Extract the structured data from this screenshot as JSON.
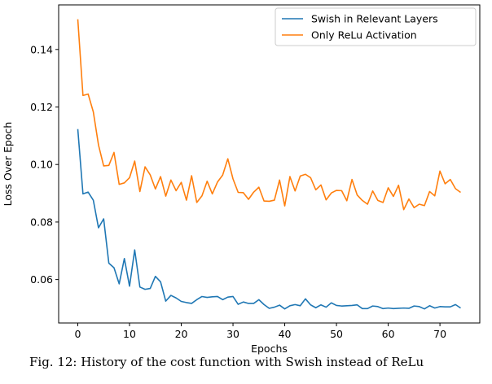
{
  "chart_data": {
    "type": "line",
    "xlabel": "Epochs",
    "ylabel": "Loss Over Epoch",
    "xlim": [
      -3.7,
      77.7
    ],
    "ylim": [
      0.0449,
      0.1555
    ],
    "xticks": [
      0,
      10,
      20,
      30,
      40,
      50,
      60,
      70
    ],
    "yticks": [
      0.06,
      0.08,
      0.1,
      0.12,
      0.14
    ],
    "ytick_labels": [
      "0.06",
      "0.08",
      "0.10",
      "0.12",
      "0.14"
    ],
    "grid": false,
    "legend_position": "top-right",
    "x": [
      0,
      1,
      2,
      3,
      4,
      5,
      6,
      7,
      8,
      9,
      10,
      11,
      12,
      13,
      14,
      15,
      16,
      17,
      18,
      19,
      20,
      21,
      22,
      23,
      24,
      25,
      26,
      27,
      28,
      29,
      30,
      31,
      32,
      33,
      34,
      35,
      36,
      37,
      38,
      39,
      40,
      41,
      42,
      43,
      44,
      45,
      46,
      47,
      48,
      49,
      50,
      51,
      52,
      53,
      54,
      55,
      56,
      57,
      58,
      59,
      60,
      61,
      62,
      63,
      64,
      65,
      66,
      67,
      68,
      69,
      70,
      71,
      72,
      73,
      74
    ],
    "series": [
      {
        "name": "Swish in Relevant Layers",
        "color": "#1f77b4",
        "values": [
          0.1123,
          0.0898,
          0.0904,
          0.0876,
          0.078,
          0.0811,
          0.0657,
          0.0641,
          0.0585,
          0.0673,
          0.0577,
          0.0703,
          0.0574,
          0.0566,
          0.0569,
          0.0611,
          0.0592,
          0.0525,
          0.0545,
          0.0536,
          0.0524,
          0.052,
          0.0517,
          0.053,
          0.0541,
          0.0538,
          0.054,
          0.0541,
          0.053,
          0.0539,
          0.0541,
          0.0514,
          0.0522,
          0.0517,
          0.0517,
          0.053,
          0.0513,
          0.05,
          0.0504,
          0.0511,
          0.0498,
          0.0509,
          0.0513,
          0.0509,
          0.0533,
          0.0512,
          0.0502,
          0.0512,
          0.0504,
          0.0519,
          0.051,
          0.0508,
          0.0509,
          0.051,
          0.0512,
          0.0499,
          0.0499,
          0.0508,
          0.0506,
          0.0499,
          0.0501,
          0.0499,
          0.05,
          0.0501,
          0.05,
          0.0508,
          0.0506,
          0.0498,
          0.0509,
          0.0501,
          0.0506,
          0.0505,
          0.0505,
          0.0513,
          0.0501
        ]
      },
      {
        "name": "Only ReLu Activation",
        "color": "#ff7f0e",
        "values": [
          0.1505,
          0.124,
          0.1245,
          0.1183,
          0.1068,
          0.0995,
          0.0997,
          0.1042,
          0.0931,
          0.0936,
          0.0954,
          0.1012,
          0.0906,
          0.0992,
          0.0964,
          0.0915,
          0.0958,
          0.089,
          0.0946,
          0.0909,
          0.0938,
          0.0876,
          0.0961,
          0.0868,
          0.0891,
          0.0942,
          0.0898,
          0.0939,
          0.0963,
          0.102,
          0.095,
          0.0903,
          0.0902,
          0.0879,
          0.0904,
          0.0921,
          0.0873,
          0.0872,
          0.0876,
          0.0946,
          0.0856,
          0.0958,
          0.0908,
          0.096,
          0.0966,
          0.0954,
          0.0912,
          0.0929,
          0.0877,
          0.0901,
          0.091,
          0.0909,
          0.0874,
          0.0948,
          0.0894,
          0.0875,
          0.0862,
          0.0908,
          0.0875,
          0.0868,
          0.0919,
          0.0889,
          0.0928,
          0.0843,
          0.088,
          0.085,
          0.0862,
          0.0857,
          0.0906,
          0.0891,
          0.0977,
          0.0933,
          0.0948,
          0.0916,
          0.0903
        ]
      }
    ]
  },
  "caption": "Fig. 12: History of the cost function with Swish instead of ReLu"
}
